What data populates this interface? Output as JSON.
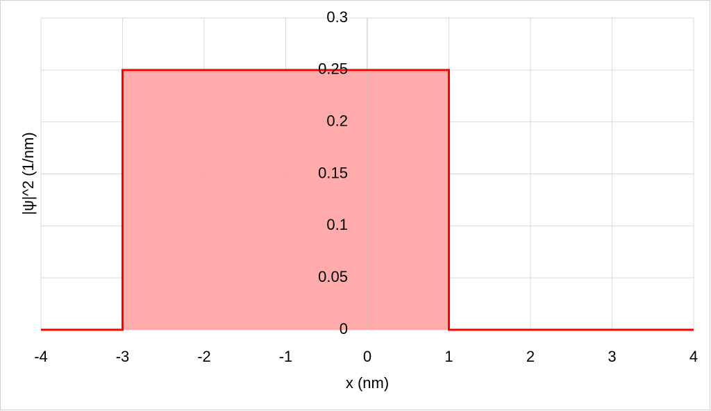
{
  "chart_data": {
    "type": "area",
    "x_label": "x (nm)",
    "y_label": "|ψ|^2 (1/nm)",
    "series": [
      {
        "name": "|ψ|^2",
        "color": "#ff0000",
        "fill_color": "#ffa6a6",
        "x": [
          -4,
          -3,
          -3,
          1,
          1,
          4
        ],
        "values": [
          0,
          0,
          0.25,
          0.25,
          0,
          0
        ]
      }
    ],
    "xlim": [
      -4,
      4
    ],
    "xticks": [
      -4,
      -3,
      -2,
      -1,
      0,
      1,
      2,
      3,
      4
    ],
    "ylim": [
      0,
      0.3
    ],
    "yticks": [
      0,
      0.05,
      0.1,
      0.15,
      0.2,
      0.25,
      0.3
    ],
    "grid": true
  }
}
